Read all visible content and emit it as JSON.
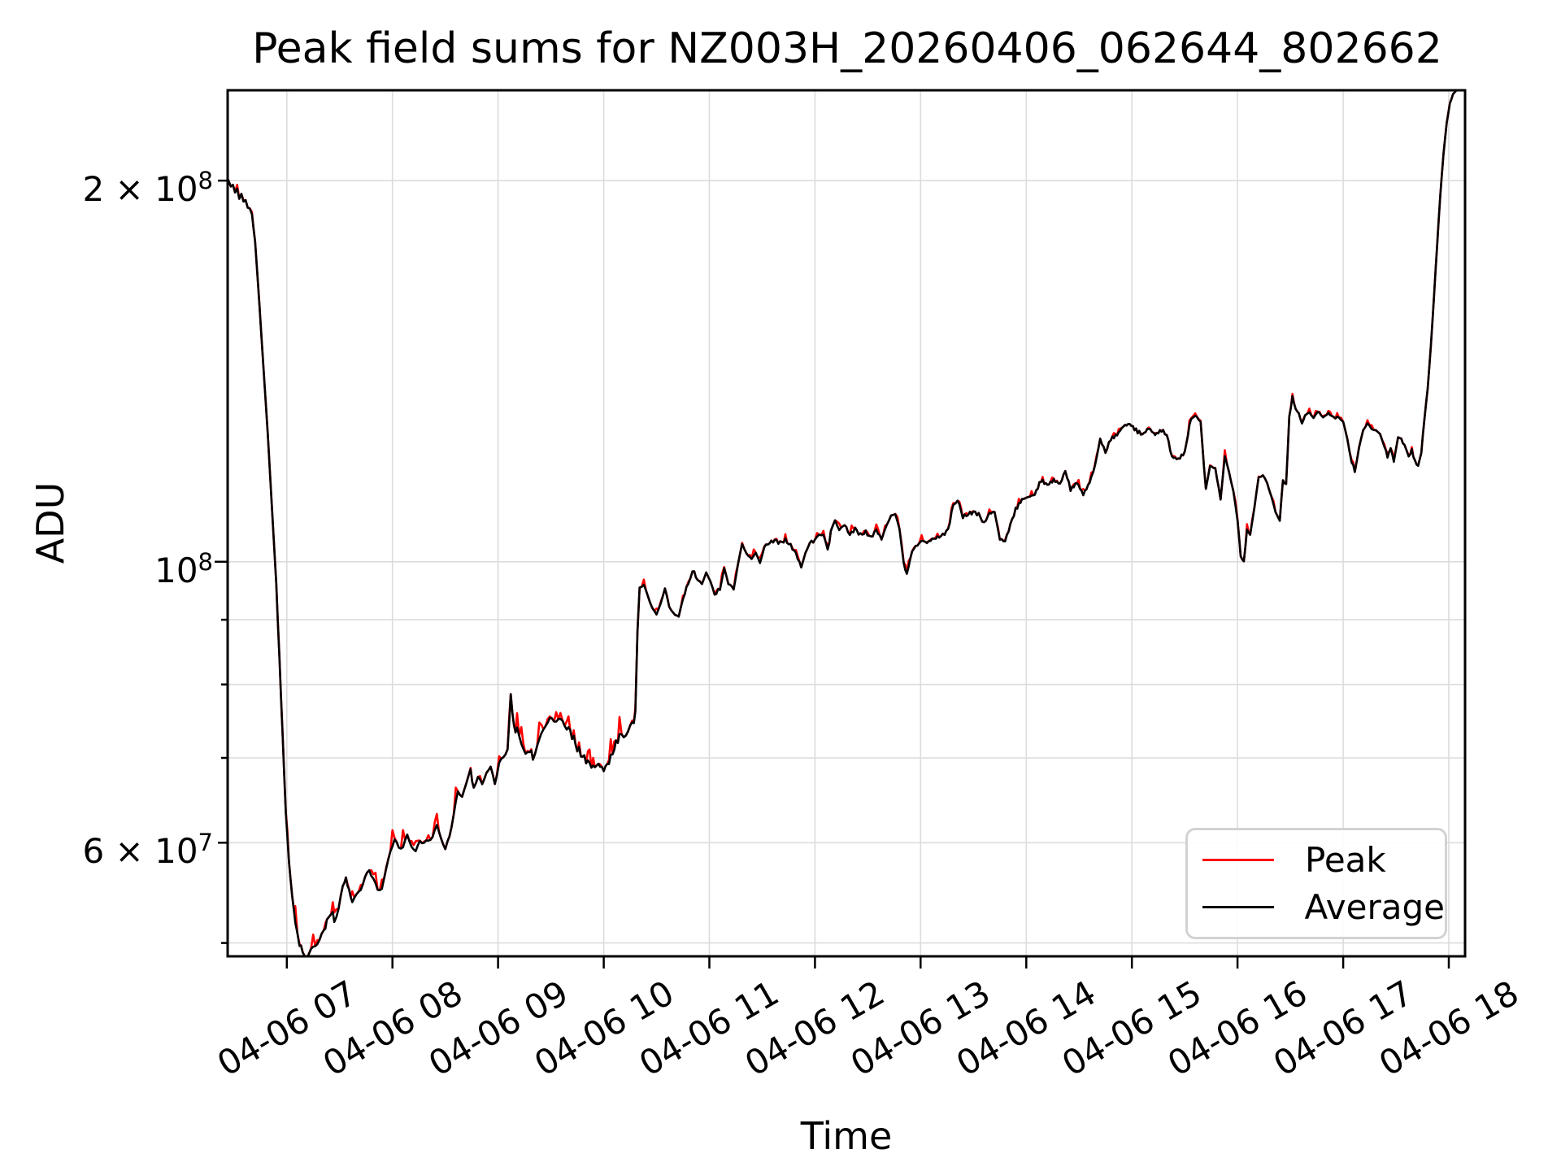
{
  "chart_data": {
    "type": "line",
    "title": "Peak field sums for NZ003H_20260406_062644_802662",
    "xlabel": "Time",
    "ylabel": "ADU",
    "yscale": "log",
    "grid": true,
    "legend_position": "lower right",
    "colors": {
      "grid": "#dcdcdc",
      "spine": "#000000",
      "background": "#ffffff",
      "peak": "#ff0000",
      "average": "#000000"
    },
    "xlim_hours": [
      6.44,
      18.154
    ],
    "ylim_adu": [
      48800000.0,
      235700000.0
    ],
    "x_date": "04-06",
    "x_ticks": [
      {
        "hour": 7,
        "label": "04-06 07"
      },
      {
        "hour": 8,
        "label": "04-06 08"
      },
      {
        "hour": 9,
        "label": "04-06 09"
      },
      {
        "hour": 10,
        "label": "04-06 10"
      },
      {
        "hour": 11,
        "label": "04-06 11"
      },
      {
        "hour": 12,
        "label": "04-06 12"
      },
      {
        "hour": 13,
        "label": "04-06 13"
      },
      {
        "hour": 14,
        "label": "04-06 14"
      },
      {
        "hour": 15,
        "label": "04-06 15"
      },
      {
        "hour": 16,
        "label": "04-06 16"
      },
      {
        "hour": 17,
        "label": "04-06 17"
      },
      {
        "hour": 18,
        "label": "04-06 18"
      }
    ],
    "y_ticks": [
      {
        "value": 200000000.0,
        "mantissa": "2 × 10",
        "exponent": "8",
        "major": false
      },
      {
        "value": 100000000.0,
        "mantissa": "10",
        "exponent": "8",
        "major": true
      },
      {
        "value": 60000000.0,
        "mantissa": "6 × 10",
        "exponent": "7",
        "major": false
      }
    ],
    "y_gridlines": [
      200000000.0,
      100000000.0,
      90000000.0,
      80000000.0,
      70000000.0,
      60000000.0,
      50000000.0
    ],
    "y_minor_tick_values": [
      90000000.0,
      80000000.0,
      70000000.0,
      50000000.0
    ],
    "series": [
      {
        "name": "Peak",
        "color": "#ff0000",
        "relation": "equals Average plus intermittent upward spikes",
        "spike_regions": [
          {
            "from_hour": 6.44,
            "to_hour": 6.7,
            "max_pct_above_avg": 0.8
          },
          {
            "from_hour": 6.7,
            "to_hour": 6.98,
            "max_pct_above_avg": 0.3
          },
          {
            "from_hour": 6.98,
            "to_hour": 10.3,
            "max_pct_above_avg": 3.2
          },
          {
            "from_hour": 10.3,
            "to_hour": 16.45,
            "max_pct_above_avg": 1.2
          },
          {
            "from_hour": 16.45,
            "to_hour": 17.78,
            "max_pct_above_avg": 0.8
          },
          {
            "from_hour": 17.78,
            "to_hour": 18.16,
            "max_pct_above_avg": 0.1
          }
        ]
      },
      {
        "name": "Average",
        "color": "#000000"
      }
    ],
    "avg_noise_regions": [
      [
        6.44,
        6.7,
        0.004
      ],
      [
        6.7,
        6.98,
        0.0015
      ],
      [
        6.98,
        10.3,
        0.008
      ],
      [
        10.3,
        16.45,
        0.0035
      ],
      [
        16.45,
        17.78,
        0.0025
      ],
      [
        17.78,
        18.16,
        0.0005
      ]
    ],
    "points_hour_adu": [
      [
        6.445,
        200000000.0
      ],
      [
        6.47,
        197500000.0
      ],
      [
        6.49,
        198000000.0
      ],
      [
        6.51,
        195500000.0
      ],
      [
        6.53,
        197000000.0
      ],
      [
        6.55,
        193000000.0
      ],
      [
        6.57,
        194500000.0
      ],
      [
        6.59,
        192000000.0
      ],
      [
        6.61,
        193000000.0
      ],
      [
        6.63,
        190500000.0
      ],
      [
        6.65,
        190000000.0
      ],
      [
        6.67,
        188000000.0
      ],
      [
        6.7,
        179000000.0
      ],
      [
        6.74,
        160000000.0
      ],
      [
        6.78,
        142000000.0
      ],
      [
        6.82,
        126000000.0
      ],
      [
        6.86,
        110000000.0
      ],
      [
        6.9,
        96000000.0
      ],
      [
        6.93,
        84000000.0
      ],
      [
        6.96,
        73000000.0
      ],
      [
        6.99,
        63500000.0
      ],
      [
        7.02,
        58000000.0
      ],
      [
        7.05,
        54500000.0
      ],
      [
        7.08,
        52000000.0
      ],
      [
        7.12,
        50000000.0
      ],
      [
        7.15,
        49200000.0
      ],
      [
        7.19,
        48800000.0
      ],
      [
        7.23,
        49200000.0
      ],
      [
        7.27,
        49600000.0
      ],
      [
        7.31,
        50000000.0
      ],
      [
        7.35,
        51000000.0
      ],
      [
        7.38,
        52000000.0
      ],
      [
        7.42,
        53000000.0
      ],
      [
        7.45,
        52200000.0
      ],
      [
        7.49,
        53500000.0
      ],
      [
        7.53,
        55500000.0
      ],
      [
        7.56,
        56200000.0
      ],
      [
        7.59,
        55000000.0
      ],
      [
        7.62,
        53800000.0
      ],
      [
        7.66,
        54200000.0
      ],
      [
        7.7,
        55000000.0
      ],
      [
        7.74,
        56200000.0
      ],
      [
        7.78,
        57200000.0
      ],
      [
        7.82,
        56500000.0
      ],
      [
        7.86,
        55200000.0
      ],
      [
        7.9,
        55500000.0
      ],
      [
        7.94,
        57000000.0
      ],
      [
        7.98,
        59000000.0
      ],
      [
        8.02,
        60000000.0
      ],
      [
        8.06,
        59200000.0
      ],
      [
        8.1,
        59500000.0
      ],
      [
        8.14,
        60800000.0
      ],
      [
        8.18,
        60000000.0
      ],
      [
        8.22,
        59200000.0
      ],
      [
        8.26,
        60500000.0
      ],
      [
        8.3,
        60000000.0
      ],
      [
        8.34,
        60000000.0
      ],
      [
        8.38,
        60500000.0
      ],
      [
        8.42,
        61500000.0
      ],
      [
        8.46,
        60500000.0
      ],
      [
        8.5,
        59200000.0
      ],
      [
        8.54,
        61000000.0
      ],
      [
        8.58,
        63500000.0
      ],
      [
        8.62,
        66000000.0
      ],
      [
        8.66,
        65500000.0
      ],
      [
        8.7,
        66500000.0
      ],
      [
        8.74,
        68500000.0
      ],
      [
        8.77,
        66000000.0
      ],
      [
        8.81,
        67500000.0
      ],
      [
        8.85,
        66500000.0
      ],
      [
        8.89,
        68500000.0
      ],
      [
        8.93,
        69000000.0
      ],
      [
        8.97,
        67200000.0
      ],
      [
        9.01,
        69500000.0
      ],
      [
        9.05,
        70000000.0
      ],
      [
        9.09,
        71000000.0
      ],
      [
        9.12,
        78500000.0
      ],
      [
        9.15,
        74000000.0
      ],
      [
        9.18,
        73500000.0
      ],
      [
        9.22,
        72000000.0
      ],
      [
        9.26,
        70500000.0
      ],
      [
        9.3,
        71200000.0
      ],
      [
        9.33,
        70000000.0
      ],
      [
        9.37,
        72000000.0
      ],
      [
        9.41,
        73000000.0
      ],
      [
        9.45,
        74200000.0
      ],
      [
        9.49,
        74800000.0
      ],
      [
        9.53,
        74500000.0
      ],
      [
        9.57,
        75000000.0
      ],
      [
        9.61,
        74800000.0
      ],
      [
        9.65,
        74200000.0
      ],
      [
        9.7,
        73000000.0
      ],
      [
        9.75,
        71200000.0
      ],
      [
        9.8,
        70200000.0
      ],
      [
        9.85,
        69500000.0
      ],
      [
        9.9,
        68800000.0
      ],
      [
        9.95,
        69200000.0
      ],
      [
        10.0,
        68500000.0
      ],
      [
        10.05,
        69500000.0
      ],
      [
        10.1,
        71200000.0
      ],
      [
        10.15,
        73000000.0
      ],
      [
        10.19,
        72500000.0
      ],
      [
        10.23,
        73200000.0
      ],
      [
        10.27,
        74200000.0
      ],
      [
        10.3,
        76000000.0
      ],
      [
        10.32,
        88000000.0
      ],
      [
        10.34,
        95500000.0
      ],
      [
        10.38,
        96000000.0
      ],
      [
        10.42,
        94000000.0
      ],
      [
        10.46,
        92200000.0
      ],
      [
        10.5,
        90800000.0
      ],
      [
        10.54,
        92800000.0
      ],
      [
        10.58,
        95000000.0
      ],
      [
        10.62,
        92000000.0
      ],
      [
        10.66,
        91000000.0
      ],
      [
        10.71,
        90500000.0
      ],
      [
        10.75,
        93500000.0
      ],
      [
        10.8,
        96200000.0
      ],
      [
        10.84,
        98500000.0
      ],
      [
        10.89,
        96800000.0
      ],
      [
        10.93,
        95800000.0
      ],
      [
        10.97,
        98000000.0
      ],
      [
        11.01,
        96200000.0
      ],
      [
        11.05,
        94200000.0
      ],
      [
        11.1,
        95200000.0
      ],
      [
        11.14,
        99000000.0
      ],
      [
        11.18,
        96200000.0
      ],
      [
        11.23,
        95200000.0
      ],
      [
        11.27,
        99500000.0
      ],
      [
        11.31,
        103000000.0
      ],
      [
        11.35,
        101500000.0
      ],
      [
        11.4,
        100500000.0
      ],
      [
        11.44,
        101500000.0
      ],
      [
        11.48,
        100000000.0
      ],
      [
        11.52,
        102800000.0
      ],
      [
        11.57,
        103500000.0
      ],
      [
        11.62,
        104000000.0
      ],
      [
        11.67,
        103500000.0
      ],
      [
        11.72,
        104000000.0
      ],
      [
        11.77,
        103000000.0
      ],
      [
        11.82,
        101500000.0
      ],
      [
        11.87,
        99000000.0
      ],
      [
        11.91,
        102000000.0
      ],
      [
        11.95,
        103500000.0
      ],
      [
        12.0,
        104000000.0
      ],
      [
        12.04,
        105000000.0
      ],
      [
        12.08,
        104800000.0
      ],
      [
        12.12,
        102000000.0
      ],
      [
        12.15,
        105500000.0
      ],
      [
        12.19,
        108000000.0
      ],
      [
        12.23,
        106000000.0
      ],
      [
        12.28,
        107000000.0
      ],
      [
        12.33,
        105000000.0
      ],
      [
        12.38,
        106200000.0
      ],
      [
        12.43,
        105000000.0
      ],
      [
        12.48,
        105500000.0
      ],
      [
        12.53,
        104500000.0
      ],
      [
        12.58,
        106000000.0
      ],
      [
        12.63,
        104200000.0
      ],
      [
        12.68,
        107000000.0
      ],
      [
        12.72,
        109000000.0
      ],
      [
        12.76,
        108800000.0
      ],
      [
        12.8,
        106000000.0
      ],
      [
        12.84,
        99500000.0
      ],
      [
        12.87,
        97800000.0
      ],
      [
        12.92,
        102000000.0
      ],
      [
        12.97,
        103200000.0
      ],
      [
        13.01,
        104000000.0
      ],
      [
        13.06,
        103500000.0
      ],
      [
        13.11,
        104200000.0
      ],
      [
        13.16,
        104500000.0
      ],
      [
        13.21,
        105000000.0
      ],
      [
        13.26,
        106000000.0
      ],
      [
        13.31,
        111000000.0
      ],
      [
        13.35,
        112000000.0
      ],
      [
        13.4,
        108500000.0
      ],
      [
        13.45,
        109000000.0
      ],
      [
        13.5,
        109500000.0
      ],
      [
        13.55,
        109000000.0
      ],
      [
        13.6,
        107200000.0
      ],
      [
        13.65,
        109200000.0
      ],
      [
        13.7,
        109500000.0
      ],
      [
        13.75,
        104200000.0
      ],
      [
        13.8,
        103800000.0
      ],
      [
        13.85,
        107000000.0
      ],
      [
        13.9,
        110000000.0
      ],
      [
        13.96,
        112000000.0
      ],
      [
        14.02,
        112500000.0
      ],
      [
        14.08,
        113000000.0
      ],
      [
        14.14,
        116000000.0
      ],
      [
        14.2,
        115000000.0
      ],
      [
        14.26,
        116000000.0
      ],
      [
        14.32,
        115200000.0
      ],
      [
        14.37,
        118000000.0
      ],
      [
        14.42,
        114000000.0
      ],
      [
        14.48,
        115500000.0
      ],
      [
        14.54,
        113000000.0
      ],
      [
        14.6,
        115500000.0
      ],
      [
        14.65,
        119000000.0
      ],
      [
        14.7,
        125000000.0
      ],
      [
        14.75,
        122000000.0
      ],
      [
        14.8,
        125000000.0
      ],
      [
        14.86,
        126000000.0
      ],
      [
        14.92,
        128000000.0
      ],
      [
        14.98,
        128500000.0
      ],
      [
        15.04,
        127000000.0
      ],
      [
        15.1,
        126000000.0
      ],
      [
        15.16,
        127500000.0
      ],
      [
        15.22,
        126000000.0
      ],
      [
        15.28,
        127000000.0
      ],
      [
        15.33,
        126000000.0
      ],
      [
        15.38,
        121000000.0
      ],
      [
        15.44,
        120500000.0
      ],
      [
        15.5,
        122000000.0
      ],
      [
        15.56,
        130000000.0
      ],
      [
        15.6,
        130500000.0
      ],
      [
        15.65,
        129000000.0
      ],
      [
        15.7,
        114000000.0
      ],
      [
        15.74,
        119000000.0
      ],
      [
        15.79,
        118500000.0
      ],
      [
        15.84,
        112000000.0
      ],
      [
        15.88,
        121000000.0
      ],
      [
        15.92,
        118000000.0
      ],
      [
        15.96,
        114000000.0
      ],
      [
        16.0,
        108000000.0
      ],
      [
        16.03,
        101000000.0
      ],
      [
        16.06,
        100000000.0
      ],
      [
        16.09,
        106000000.0
      ],
      [
        16.12,
        105000000.0
      ],
      [
        16.16,
        110000000.0
      ],
      [
        16.2,
        116500000.0
      ],
      [
        16.24,
        117000000.0
      ],
      [
        16.28,
        115500000.0
      ],
      [
        16.32,
        113000000.0
      ],
      [
        16.36,
        109500000.0
      ],
      [
        16.4,
        108000000.0
      ],
      [
        16.43,
        116000000.0
      ],
      [
        16.46,
        115000000.0
      ],
      [
        16.49,
        130000000.0
      ],
      [
        16.52,
        135000000.0
      ],
      [
        16.55,
        132000000.0
      ],
      [
        16.58,
        131000000.0
      ],
      [
        16.61,
        128500000.0
      ],
      [
        16.64,
        130500000.0
      ],
      [
        16.68,
        131500000.0
      ],
      [
        16.72,
        130000000.0
      ],
      [
        16.76,
        131500000.0
      ],
      [
        16.81,
        130000000.0
      ],
      [
        16.86,
        131000000.0
      ],
      [
        16.91,
        130000000.0
      ],
      [
        16.96,
        130000000.0
      ],
      [
        17.0,
        129000000.0
      ],
      [
        17.04,
        125000000.0
      ],
      [
        17.08,
        120000000.0
      ],
      [
        17.11,
        118000000.0
      ],
      [
        17.15,
        123000000.0
      ],
      [
        17.19,
        127000000.0
      ],
      [
        17.23,
        128500000.0
      ],
      [
        17.27,
        127000000.0
      ],
      [
        17.31,
        127000000.0
      ],
      [
        17.35,
        126000000.0
      ],
      [
        17.39,
        123500000.0
      ],
      [
        17.42,
        121000000.0
      ],
      [
        17.45,
        123000000.0
      ],
      [
        17.48,
        120000000.0
      ],
      [
        17.52,
        125500000.0
      ],
      [
        17.55,
        125000000.0
      ],
      [
        17.58,
        123500000.0
      ],
      [
        17.62,
        121000000.0
      ],
      [
        17.65,
        122500000.0
      ],
      [
        17.68,
        120000000.0
      ],
      [
        17.71,
        119000000.0
      ],
      [
        17.74,
        122000000.0
      ],
      [
        17.77,
        130000000.0
      ],
      [
        17.8,
        137000000.0
      ],
      [
        17.83,
        148000000.0
      ],
      [
        17.86,
        162000000.0
      ],
      [
        17.89,
        178000000.0
      ],
      [
        17.92,
        195000000.0
      ],
      [
        17.95,
        210000000.0
      ],
      [
        17.98,
        222000000.0
      ],
      [
        18.01,
        230000000.0
      ],
      [
        18.04,
        234000000.0
      ],
      [
        18.08,
        236000000.0
      ],
      [
        18.154,
        238000000.0
      ]
    ]
  }
}
